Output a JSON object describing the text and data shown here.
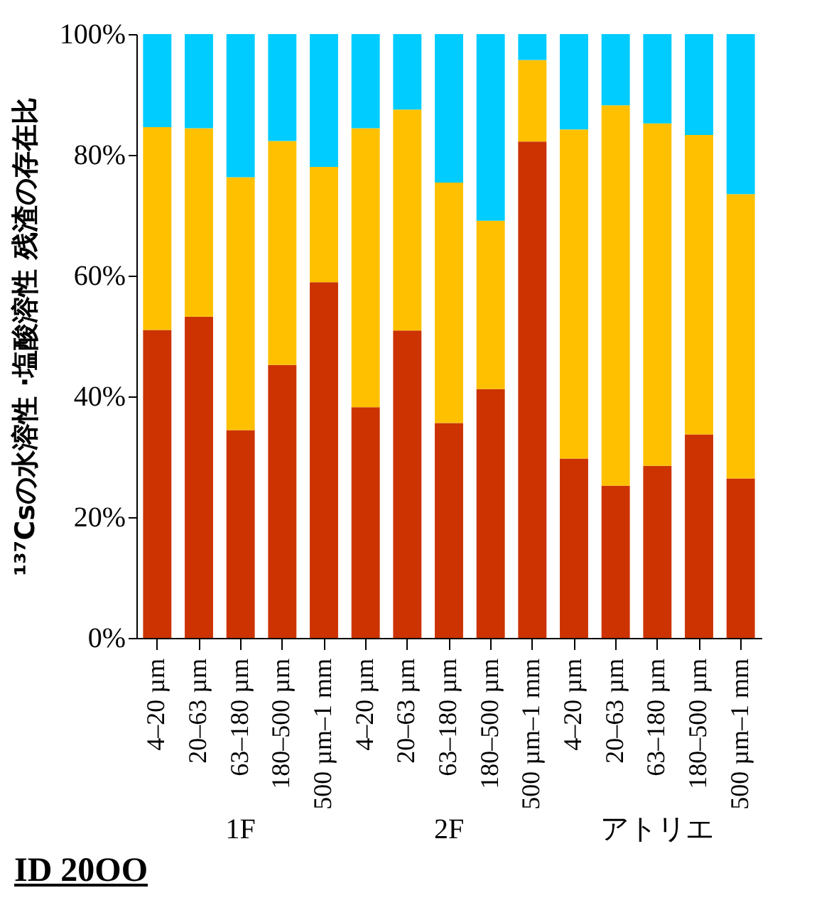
{
  "chart_data": {
    "type": "bar",
    "stacked": true,
    "ylabel": "¹³⁷Csの水溶性 ·塩酸溶性 残渣の存在比",
    "categories": [
      "4–20 µm",
      "20–63 µm",
      "63–180 µm",
      "180–500 µm",
      "500 µm–1 mm",
      "4–20 µm",
      "20–63 µm",
      "63–180 µm",
      "180–500 µm",
      "500 µm–1 mm",
      "4–20 µm",
      "20–63 µm",
      "63–180 µm",
      "180–500 µm",
      "500 µm–1 mm"
    ],
    "series": [
      {
        "color": "#cc3300",
        "values": [
          51.0,
          53.2,
          34.4,
          45.2,
          58.9,
          38.2,
          50.9,
          35.6,
          41.2,
          82.2,
          29.7,
          25.2,
          28.5,
          33.7,
          26.4
        ]
      },
      {
        "color": "#ffc000",
        "values": [
          33.6,
          31.2,
          41.9,
          37.1,
          19.1,
          46.2,
          36.6,
          39.8,
          27.9,
          13.5,
          54.5,
          63.0,
          56.7,
          49.6,
          47.1
        ]
      },
      {
        "color": "#00ccff",
        "values": [
          15.4,
          15.6,
          23.7,
          17.7,
          22.0,
          15.6,
          12.5,
          24.6,
          30.9,
          4.3,
          15.8,
          11.8,
          14.8,
          16.7,
          26.5
        ]
      }
    ],
    "ylim": [
      0,
      100
    ],
    "yticks": [
      {
        "value": 0,
        "label": "0%"
      },
      {
        "value": 20,
        "label": "20%"
      },
      {
        "value": 40,
        "label": "40%"
      },
      {
        "value": 60,
        "label": "60%"
      },
      {
        "value": 80,
        "label": "80%"
      },
      {
        "value": 100,
        "label": "100%"
      }
    ],
    "grid": false,
    "legend": false,
    "annotations": [
      "1F",
      "2F",
      "アトリエ",
      "ID 20OO"
    ]
  }
}
